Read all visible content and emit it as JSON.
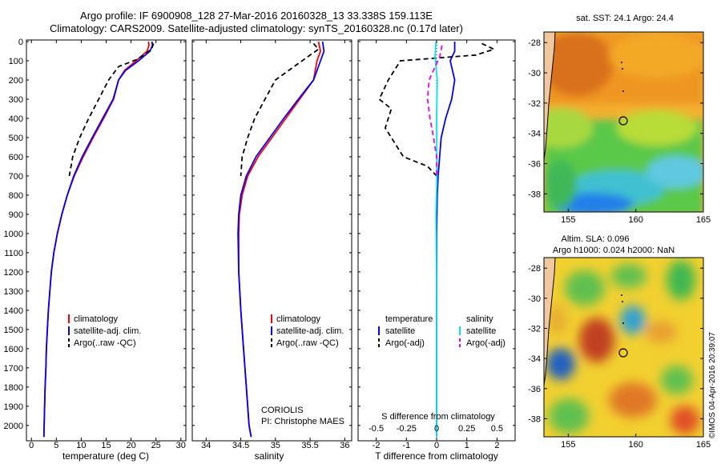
{
  "header": {
    "line1": "Argo profile: IF 6900908_128 27-Mar-2016 20160328_13 33.338S 159.113E",
    "line2": "Climatology: CARS2009. Satellite-adjusted climatology: synTS_20160328.nc (0.17d later)"
  },
  "colors": {
    "clim": "#ff0000",
    "sat": "#0000ff",
    "argo": "#000000",
    "sat_sal": "#00e5ee",
    "argo_sal": "#ee00ee"
  },
  "chart_data": [
    {
      "type": "line",
      "xlabel": "temperature (deg C)",
      "xlim": [
        -1,
        31
      ],
      "xticks": [
        "0",
        "5",
        "10",
        "15",
        "20",
        "25",
        "30"
      ],
      "ylim": [
        2080,
        0
      ],
      "yticks": [
        "0",
        "100",
        "200",
        "300",
        "400",
        "500",
        "600",
        "700",
        "800",
        "900",
        "1000",
        "1100",
        "1200",
        "1300",
        "1400",
        "1500",
        "1600",
        "1700",
        "1800",
        "1900",
        "2000"
      ],
      "legend": [
        "climatology",
        "satellite-adj. clim.",
        "Argo(..raw -QC)"
      ],
      "series": [
        {
          "name": "climatology",
          "color": "clim",
          "dash": "",
          "points": [
            [
              23.5,
              0
            ],
            [
              23.6,
              20
            ],
            [
              23.2,
              50
            ],
            [
              21.0,
              100
            ],
            [
              18.7,
              150
            ],
            [
              17.5,
              200
            ],
            [
              16.5,
              300
            ],
            [
              14.5,
              400
            ],
            [
              12.4,
              500
            ],
            [
              10.4,
              600
            ],
            [
              8.6,
              700
            ],
            [
              7.2,
              800
            ],
            [
              6.1,
              900
            ],
            [
              5.2,
              1000
            ],
            [
              4.5,
              1100
            ],
            [
              4.0,
              1200
            ],
            [
              3.7,
              1300
            ],
            [
              3.4,
              1400
            ],
            [
              3.2,
              1500
            ],
            [
              3.0,
              1600
            ],
            [
              2.9,
              1700
            ],
            [
              2.75,
              1800
            ],
            [
              2.65,
              1900
            ],
            [
              2.55,
              2000
            ],
            [
              2.5,
              2060
            ]
          ]
        },
        {
          "name": "satellite-adj. clim.",
          "color": "sat",
          "dash": "",
          "points": [
            [
              24.2,
              0
            ],
            [
              24.3,
              20
            ],
            [
              23.8,
              50
            ],
            [
              21.5,
              100
            ],
            [
              18.9,
              150
            ],
            [
              17.5,
              200
            ],
            [
              16.4,
              300
            ],
            [
              14.3,
              400
            ],
            [
              12.2,
              500
            ],
            [
              10.2,
              600
            ],
            [
              8.5,
              700
            ],
            [
              7.2,
              800
            ],
            [
              6.1,
              900
            ],
            [
              5.2,
              1000
            ],
            [
              4.5,
              1100
            ],
            [
              4.0,
              1200
            ],
            [
              3.7,
              1300
            ],
            [
              3.4,
              1400
            ],
            [
              3.2,
              1500
            ],
            [
              3.0,
              1600
            ],
            [
              2.9,
              1700
            ],
            [
              2.75,
              1800
            ],
            [
              2.65,
              1900
            ],
            [
              2.55,
              2000
            ],
            [
              2.5,
              2060
            ]
          ]
        },
        {
          "name": "Argo(..raw -QC)",
          "color": "argo",
          "dash": "6,4",
          "points": [
            [
              24.5,
              10
            ],
            [
              24.1,
              40
            ],
            [
              22.5,
              70
            ],
            [
              21.0,
              95
            ],
            [
              17.5,
              130
            ],
            [
              15.5,
              200
            ],
            [
              13.5,
              300
            ],
            [
              11.5,
              400
            ],
            [
              9.7,
              500
            ],
            [
              8.3,
              600
            ],
            [
              7.6,
              700
            ]
          ]
        }
      ]
    },
    {
      "type": "line",
      "xlabel": "salinity",
      "xlim": [
        33.8,
        36.1
      ],
      "xticks": [
        "34",
        "34.5",
        "35",
        "35.5",
        "36"
      ],
      "ylim": [
        2080,
        0
      ],
      "legend": [
        "climatology",
        "satellite-adj. clim.",
        "Argo(..raw -QC)"
      ],
      "annotation": [
        "CORIOLIS",
        "PI: Christophe MAES"
      ],
      "series": [
        {
          "name": "climatology",
          "color": "clim",
          "dash": "",
          "points": [
            [
              35.62,
              0
            ],
            [
              35.65,
              50
            ],
            [
              35.6,
              100
            ],
            [
              35.55,
              200
            ],
            [
              35.35,
              300
            ],
            [
              35.15,
              400
            ],
            [
              34.95,
              500
            ],
            [
              34.75,
              600
            ],
            [
              34.6,
              700
            ],
            [
              34.52,
              800
            ],
            [
              34.48,
              900
            ],
            [
              34.47,
              1000
            ],
            [
              34.47,
              1200
            ],
            [
              34.5,
              1400
            ],
            [
              34.54,
              1600
            ],
            [
              34.58,
              1800
            ],
            [
              34.62,
              2000
            ],
            [
              34.65,
              2060
            ]
          ]
        },
        {
          "name": "satellite-adj. clim.",
          "color": "sat",
          "dash": "",
          "points": [
            [
              35.68,
              0
            ],
            [
              35.7,
              50
            ],
            [
              35.65,
              100
            ],
            [
              35.55,
              200
            ],
            [
              35.33,
              300
            ],
            [
              35.12,
              400
            ],
            [
              34.92,
              500
            ],
            [
              34.72,
              600
            ],
            [
              34.58,
              700
            ],
            [
              34.5,
              800
            ],
            [
              34.47,
              900
            ],
            [
              34.46,
              1000
            ],
            [
              34.47,
              1200
            ],
            [
              34.5,
              1400
            ],
            [
              34.54,
              1600
            ],
            [
              34.58,
              1800
            ],
            [
              34.62,
              2000
            ],
            [
              34.65,
              2060
            ]
          ]
        },
        {
          "name": "Argo(..raw -QC)",
          "color": "argo",
          "dash": "6,4",
          "points": [
            [
              35.55,
              10
            ],
            [
              35.62,
              40
            ],
            [
              35.5,
              70
            ],
            [
              35.0,
              200
            ],
            [
              34.85,
              300
            ],
            [
              34.7,
              400
            ],
            [
              34.6,
              500
            ],
            [
              34.52,
              600
            ],
            [
              34.5,
              700
            ]
          ]
        }
      ]
    },
    {
      "type": "line",
      "xlabel_bottom": "T difference from climatology",
      "xticks_bottom": [
        "-2",
        "-1",
        "0",
        "1",
        "2"
      ],
      "xlim": [
        -2.6,
        2.6
      ],
      "xlabel_top": "S difference from climatology",
      "xticks_top": [
        "-0.5",
        "-0.25",
        "0",
        "0.25",
        "0.5"
      ],
      "ylim": [
        2080,
        0
      ],
      "legend_left": {
        "title": "temperature",
        "items": [
          "satellite",
          "Argo(-adj)"
        ]
      },
      "legend_right": {
        "title": "salinity",
        "items": [
          "satellite",
          "Argo(-adj)"
        ]
      },
      "series": [
        {
          "name": "temperature satellite",
          "color": "sat",
          "dash": "",
          "points": [
            [
              0.6,
              0
            ],
            [
              0.6,
              50
            ],
            [
              0.45,
              100
            ],
            [
              0.6,
              200
            ],
            [
              0.5,
              300
            ],
            [
              0.3,
              400
            ],
            [
              0.15,
              500
            ],
            [
              0.1,
              600
            ],
            [
              0.05,
              700
            ],
            [
              0.02,
              800
            ],
            [
              0,
              1000
            ],
            [
              0,
              2060
            ]
          ]
        },
        {
          "name": "temperature Argo(-adj)",
          "color": "argo",
          "dash": "6,4",
          "points": [
            [
              1.5,
              10
            ],
            [
              1.9,
              40
            ],
            [
              1.3,
              70
            ],
            [
              -1.2,
              100
            ],
            [
              -1.6,
              200
            ],
            [
              -1.9,
              300
            ],
            [
              -1.5,
              350
            ],
            [
              -1.7,
              450
            ],
            [
              -1.5,
              500
            ],
            [
              -1.1,
              600
            ],
            [
              -0.3,
              650
            ],
            [
              0,
              700
            ]
          ]
        },
        {
          "name": "salinity satellite",
          "color": "sat_sal",
          "dash": "",
          "points": [
            [
              -0.02,
              0
            ],
            [
              -0.05,
              80
            ],
            [
              0.02,
              200
            ],
            [
              0,
              400
            ],
            [
              0.01,
              700
            ],
            [
              -0.02,
              900
            ],
            [
              -0.01,
              1100
            ],
            [
              0,
              1300
            ],
            [
              0,
              2060
            ]
          ]
        },
        {
          "name": "salinity Argo(-adj)",
          "color": "argo_sal",
          "dash": "6,4",
          "points": [
            [
              0.18,
              20
            ],
            [
              0.1,
              80
            ],
            [
              -0.25,
              200
            ],
            [
              -0.3,
              300
            ],
            [
              -0.22,
              400
            ],
            [
              -0.1,
              500
            ],
            [
              0,
              600
            ],
            [
              0,
              700
            ]
          ]
        }
      ]
    }
  ],
  "map_top": {
    "title": "sat. SST: 24.1  Argo: 24.4",
    "xticks": [
      "155",
      "160",
      "165"
    ],
    "yticks": [
      "-28",
      "-30",
      "-32",
      "-34",
      "-36",
      "-38"
    ]
  },
  "map_bottom": {
    "title_line1": "Altim. SLA: 0.096",
    "title_line2": "Argo h1000: 0.024  h2000: NaN",
    "xticks": [
      "155",
      "160",
      "165"
    ],
    "yticks": [
      "-28",
      "-30",
      "-32",
      "-34",
      "-36",
      "-38"
    ]
  },
  "side_label": "©IMOS 04-Apr-2016 20:39:07"
}
